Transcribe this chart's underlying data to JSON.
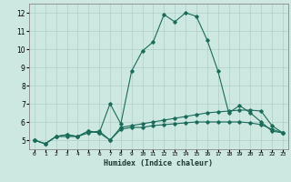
{
  "xlabel": "Humidex (Indice chaleur)",
  "background_color": "#cde8e0",
  "grid_color": "#b0cfc8",
  "line_color": "#1a6b5a",
  "x_values": [
    0,
    1,
    2,
    3,
    4,
    5,
    6,
    7,
    8,
    9,
    10,
    11,
    12,
    13,
    14,
    15,
    16,
    17,
    18,
    19,
    20,
    21,
    22,
    23
  ],
  "series1": [
    5.0,
    4.8,
    5.2,
    5.3,
    5.2,
    5.5,
    5.4,
    7.0,
    5.9,
    8.8,
    9.9,
    10.4,
    11.9,
    11.5,
    12.0,
    11.8,
    10.5,
    8.8,
    6.5,
    6.9,
    6.5,
    6.0,
    5.5,
    5.4
  ],
  "series2": [
    5.0,
    4.8,
    5.2,
    5.3,
    5.2,
    5.5,
    5.4,
    5.0,
    5.7,
    5.8,
    5.9,
    6.0,
    6.1,
    6.2,
    6.3,
    6.4,
    6.5,
    6.55,
    6.6,
    6.65,
    6.65,
    6.6,
    5.8,
    5.4
  ],
  "series3": [
    5.0,
    4.8,
    5.2,
    5.2,
    5.2,
    5.4,
    5.5,
    5.0,
    5.6,
    5.7,
    5.7,
    5.8,
    5.85,
    5.9,
    5.95,
    6.0,
    6.0,
    6.0,
    6.0,
    6.0,
    5.95,
    5.85,
    5.6,
    5.4
  ],
  "ylim": [
    4.5,
    12.5
  ],
  "yticks": [
    5,
    6,
    7,
    8,
    9,
    10,
    11,
    12
  ],
  "xlim": [
    -0.5,
    23.5
  ],
  "xtick_labels": [
    "0",
    "1",
    "2",
    "3",
    "4",
    "5",
    "6",
    "7",
    "8",
    "9",
    "10",
    "11",
    "12",
    "13",
    "14",
    "15",
    "16",
    "17",
    "18",
    "19",
    "20",
    "21",
    "22",
    "23"
  ]
}
